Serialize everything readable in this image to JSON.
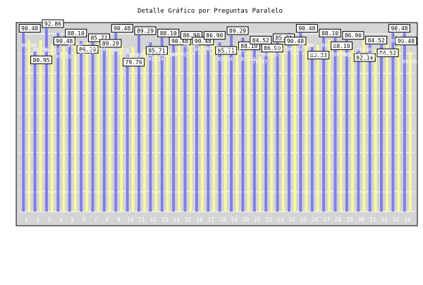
{
  "chart_data": {
    "type": "bar",
    "title": "Detalle Gráfico por Preguntas Paralelo",
    "xlabel": "",
    "ylabel": "",
    "ylim": [
      0,
      100
    ],
    "y_ticks": [
      0,
      10,
      20,
      30,
      40,
      50,
      60,
      70,
      80,
      90
    ],
    "grid": true,
    "legend": "none",
    "categories": [
      "1",
      "2",
      "3",
      "4",
      "5",
      "6",
      "7",
      "8",
      "9",
      "10",
      "11",
      "12",
      "13",
      "14",
      "15",
      "16",
      "17",
      "18",
      "19",
      "20",
      "21",
      "22",
      "23",
      "24",
      "25",
      "26",
      "27",
      "28",
      "29",
      "30",
      "31",
      "32",
      "33",
      "34"
    ],
    "series": [
      {
        "color": "#8080e8",
        "label_color": "#000000",
        "label_box": true,
        "values": [
          90.48,
          80.95,
          92.86,
          90.48,
          88.1,
          86.29,
          85.71,
          89.29,
          90.48,
          79.76,
          89.29,
          85.71,
          88.1,
          90.48,
          86.9,
          90.48,
          86.9,
          85.71,
          89.29,
          88.1,
          84.52,
          86.9,
          85.71,
          90.48,
          90.48,
          83.33,
          88.1,
          88.1,
          86.9,
          82.14,
          84.52,
          84.52,
          90.48,
          90.48
        ]
      },
      {
        "color": "#f8f8a0",
        "label_color": "#ffffff",
        "label_box": false,
        "values": [
          86.9,
          86.9,
          84.52,
          83.33,
          86.9,
          85.71,
          85.71,
          86.9,
          84.52,
          83.33,
          82.14,
          82.14,
          82.14,
          84.52,
          86.9,
          86.9,
          85.71,
          82.14,
          84.52,
          82.14,
          78.57,
          84.52,
          85.71,
          86.9,
          86.9,
          84.52,
          86.9,
          84.52,
          82.14,
          86.9,
          82.14,
          84.52,
          89.29,
          80.95
        ]
      }
    ]
  },
  "colors": {
    "background": "#ffffff",
    "plot_area": "#d4d4d4",
    "grid": "#ffffff",
    "axis": "#000000",
    "tick_label": "#ffffff"
  }
}
